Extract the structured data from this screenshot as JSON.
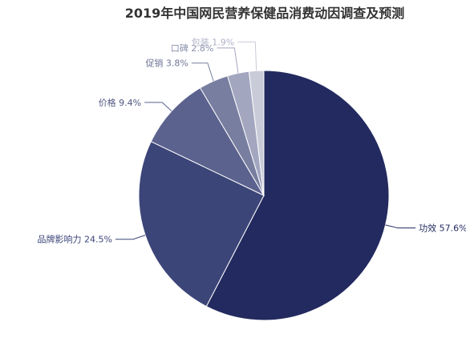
{
  "chart_data": {
    "type": "pie",
    "title": "2019年中国网民营养保健品消费动因调查及预测",
    "unit": "%",
    "slices": [
      {
        "label": "功效",
        "value": 57.6,
        "display": "功效 57.6%",
        "color": "#222a5f",
        "label_color": "#222a5f",
        "line_color": "#222a5f"
      },
      {
        "label": "品牌影响力",
        "value": 24.5,
        "display": "品牌影响力 24.5%",
        "color": "#3c4578",
        "label_color": "#3c4578",
        "line_color": "#3c4578"
      },
      {
        "label": "价格",
        "value": 9.4,
        "display": "价格 9.4%",
        "color": "#5b628e",
        "label_color": "#4f567f",
        "line_color": "#5b628e"
      },
      {
        "label": "促销",
        "value": 3.8,
        "display": "促销 3.8%",
        "color": "#787e9f",
        "label_color": "#6d7396",
        "line_color": "#787e9f"
      },
      {
        "label": "口碑",
        "value": 2.8,
        "display": "口碑 2.8%",
        "color": "#a3a6bf",
        "label_color": "#8c90ad",
        "line_color": "#a3a6bf"
      },
      {
        "label": "包装",
        "value": 1.9,
        "display": "包装 1.9%",
        "color": "#c9cbd8",
        "label_color": "#aeb1c6",
        "line_color": "#c9cbd8"
      }
    ]
  }
}
